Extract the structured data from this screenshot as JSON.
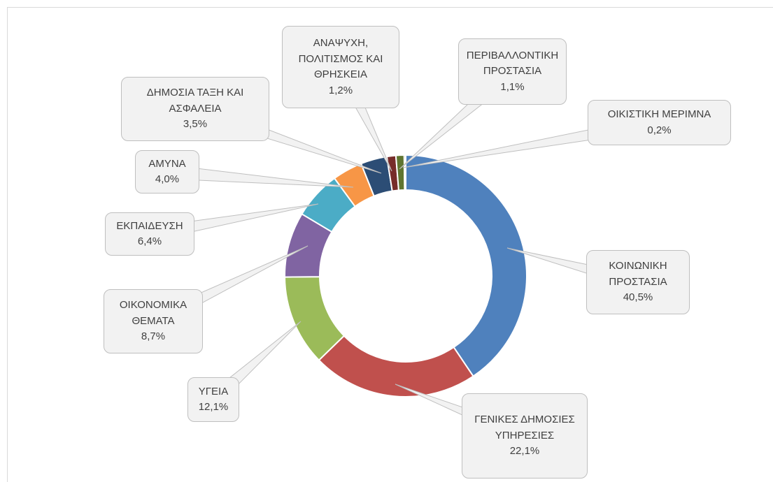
{
  "chart_data": {
    "type": "donut",
    "categories": [
      "ΚΟΙΝΩΝΙΚΗ ΠΡΟΣΤΑΣΙΑ",
      "ΓΕΝΙΚΕΣ ΔΗΜΟΣΙΕΣ ΥΠΗΡΕΣΙΕΣ",
      "ΥΓΕΙΑ",
      "ΟΙΚΟΝΟΜΙΚΑ ΘΕΜΑΤΑ",
      "ΕΚΠΑΙΔΕΥΣΗ",
      "ΑΜΥΝΑ",
      "ΔΗΜΟΣΙΑ ΤΑΞΗ ΚΑΙ ΑΣΦΑΛΕΙΑ",
      "ΑΝΑΨΥΧΗ, ΠΟΛΙΤΙΣΜΟΣ ΚΑΙ ΘΡΗΣΚΕΙΑ",
      "ΠΕΡΙΒΑΛΛΟΝΤΙΚΗ ΠΡΟΣΤΑΣΙΑ",
      "ΟΙΚΙΣΤΙΚΗ ΜΕΡΙΜΝΑ"
    ],
    "values": [
      40.5,
      22.1,
      12.1,
      8.7,
      6.4,
      4.0,
      3.5,
      1.2,
      1.1,
      0.2
    ],
    "value_labels": [
      "40,5%",
      "22,1%",
      "12,1%",
      "8,7%",
      "6,4%",
      "4,0%",
      "3,5%",
      "1,2%",
      "1,1%",
      "0,2%"
    ],
    "colors": [
      "#4f81bd",
      "#c0504d",
      "#9bbb59",
      "#8064a2",
      "#4bacc6",
      "#f79646",
      "#2c4d75",
      "#772c2a",
      "#5f7530",
      "#4e6b2a"
    ]
  }
}
